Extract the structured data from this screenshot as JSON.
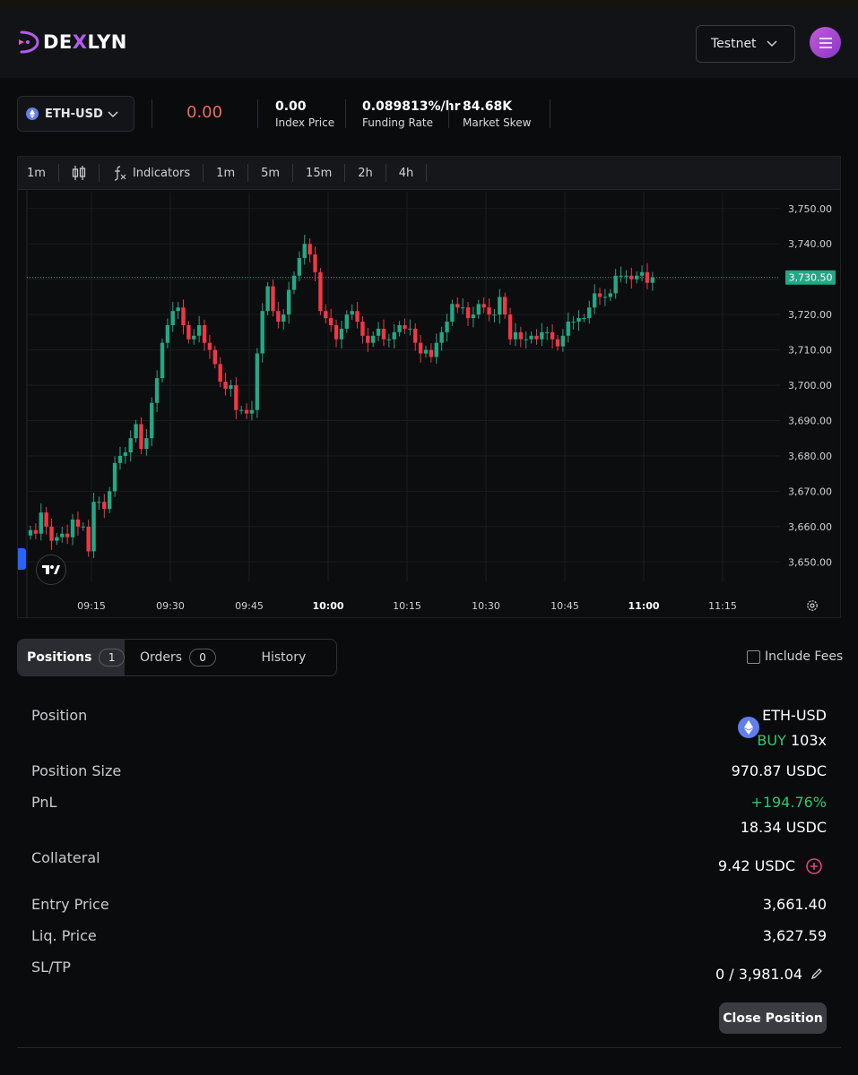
{
  "header": {
    "logo_left": "DE",
    "logo_x": "X",
    "logo_right": "LYN",
    "network": "Testnet"
  },
  "market": {
    "pair": "ETH-USD",
    "price": "0.00",
    "stats": [
      {
        "value": "0.00",
        "label": "Index Price"
      },
      {
        "value": "0.089813%/hr",
        "label": "Funding Rate"
      },
      {
        "value": "84.68K",
        "label": "Market Skew"
      }
    ]
  },
  "toolbar": {
    "interval": "1m",
    "indicators": "Indicators",
    "timeframes": [
      "1m",
      "5m",
      "15m",
      "2h",
      "4h"
    ]
  },
  "chart_data": {
    "type": "candlestick",
    "y_ticks": [
      "3,750.00",
      "3,740.00",
      "3,730.00",
      "3,720.00",
      "3,710.00",
      "3,700.00",
      "3,690.00",
      "3,680.00",
      "3,670.00",
      "3,660.00",
      "3,650.00"
    ],
    "x_ticks": [
      "09:15",
      "09:30",
      "09:45",
      "10:00",
      "10:15",
      "10:30",
      "10:45",
      "11:00",
      "11:15"
    ],
    "bold_x_ticks": [
      "10:00",
      "11:00"
    ],
    "ylim": [
      3645,
      3755
    ],
    "last_price_label": "3,730.50",
    "last_price": 3730.5,
    "up_color": "#22a884",
    "down_color": "#f23645",
    "close": [
      3659,
      3658,
      3664,
      3660,
      3656,
      3657,
      3658,
      3657,
      3662,
      3660,
      3660,
      3653,
      3667,
      3667,
      3665,
      3670,
      3678,
      3680,
      3681,
      3685,
      3689,
      3682,
      3685,
      3695,
      3702,
      3712,
      3717,
      3721,
      3722,
      3717,
      3713,
      3714,
      3717,
      3712,
      3710,
      3706,
      3701,
      3699,
      3700,
      3693,
      3693,
      3692,
      3693,
      3709,
      3721,
      3728,
      3721,
      3718,
      3720,
      3727,
      3731,
      3736,
      3740,
      3737,
      3732,
      3721,
      3719,
      3717,
      3713,
      3716,
      3720,
      3721,
      3718,
      3714,
      3712,
      3714,
      3716,
      3713,
      3713,
      3715,
      3717,
      3716,
      3716,
      3712,
      3709,
      3710,
      3708,
      3712,
      3715,
      3718,
      3723,
      3722,
      3722,
      3719,
      3720,
      3723,
      3722,
      3720,
      3720,
      3725,
      3720,
      3713,
      3715,
      3713,
      3713,
      3714,
      3713,
      3715,
      3715,
      3713,
      3711,
      3714,
      3718,
      3718,
      3719,
      3719,
      3722,
      3726,
      3725,
      3725,
      3726,
      3731,
      3731,
      3731,
      3730,
      3731,
      3732,
      3729,
      3730.5
    ]
  },
  "tabs": [
    {
      "label": "Positions",
      "count": "1"
    },
    {
      "label": "Orders",
      "count": "0"
    },
    {
      "label": "History"
    }
  ],
  "include_fees": "Include Fees",
  "position": {
    "labels": {
      "position": "Position",
      "size": "Position Size",
      "pnl": "PnL",
      "collateral": "Collateral",
      "entry": "Entry Price",
      "liq": "Liq. Price",
      "sltp": "SL/TP"
    },
    "pair": "ETH-USD",
    "side": "BUY",
    "leverage": "103x",
    "size": "970.87 USDC",
    "pnl_percent": "+194.76%",
    "pnl_value": "18.34 USDC",
    "collateral": "9.42 USDC",
    "entry_price": "3,661.40",
    "liq_price": "3,627.59",
    "sltp": "0 / 3,981.04",
    "close_button": "Close Position"
  }
}
